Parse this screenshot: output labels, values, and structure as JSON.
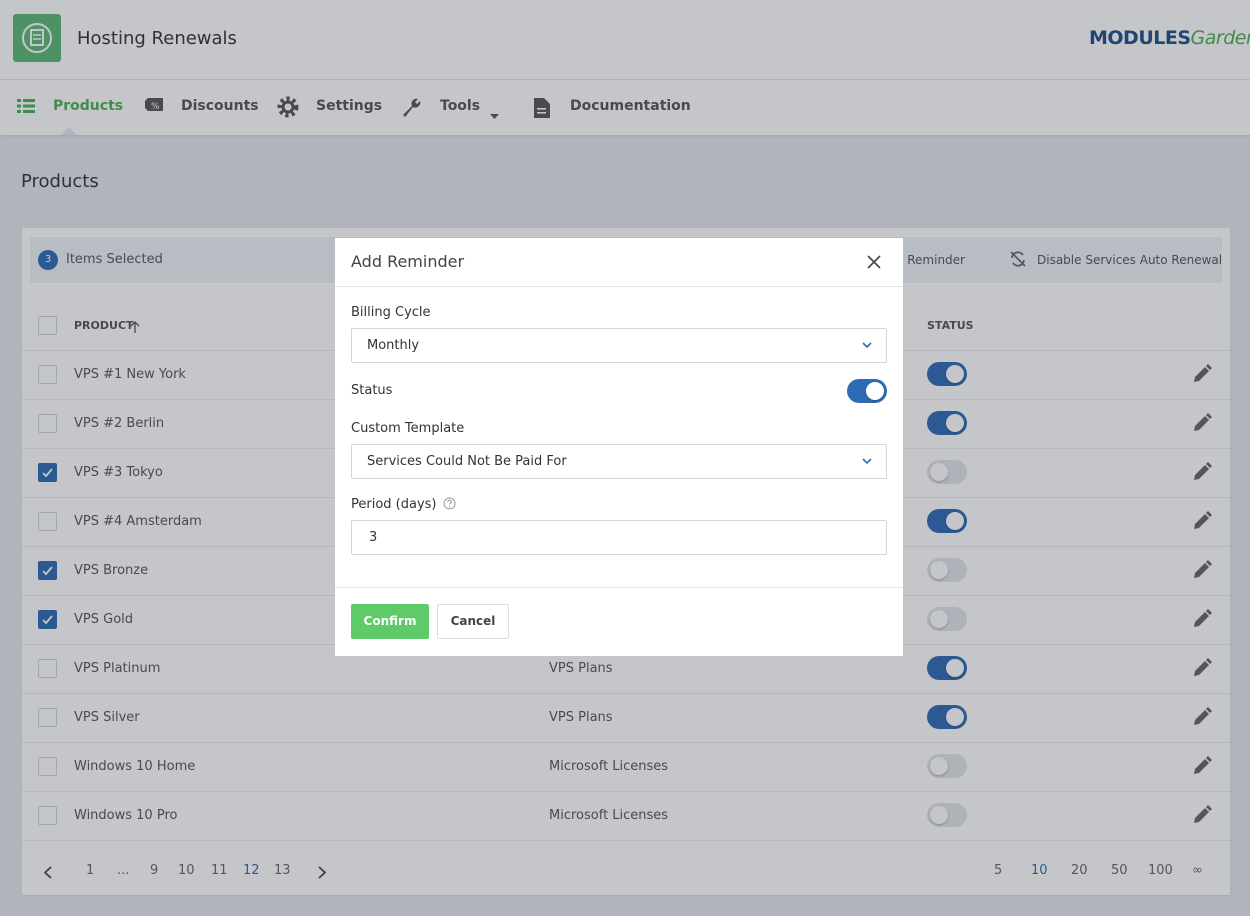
{
  "header": {
    "title": "Hosting Renewals",
    "logo": {
      "primary": "MODULES",
      "secondary": "Garden"
    }
  },
  "nav": [
    {
      "label": "Products",
      "active": true
    },
    {
      "label": "Discounts",
      "active": false
    },
    {
      "label": "Settings",
      "active": false
    },
    {
      "label": "Tools",
      "active": false,
      "dropdown": true
    },
    {
      "label": "Documentation",
      "active": false
    }
  ],
  "page_title": "Products",
  "bulk_bar": {
    "count": 3,
    "label": "Items Selected",
    "actions": [
      "Add Reminder",
      "Disable Services Auto Renewal"
    ]
  },
  "table": {
    "columns": [
      "PRODUCT",
      null,
      "STATUS"
    ],
    "sort_ascending": true,
    "rows": [
      {
        "name": "VPS #1 New York",
        "group": null,
        "status": true,
        "selected": false
      },
      {
        "name": "VPS #2 Berlin",
        "group": null,
        "status": true,
        "selected": false
      },
      {
        "name": "VPS #3 Tokyo",
        "group": null,
        "status": false,
        "selected": true
      },
      {
        "name": "VPS #4 Amsterdam",
        "group": null,
        "status": true,
        "selected": false
      },
      {
        "name": "VPS Bronze",
        "group": null,
        "status": false,
        "selected": true
      },
      {
        "name": "VPS Gold",
        "group": null,
        "status": false,
        "selected": true
      },
      {
        "name": "VPS Platinum",
        "group": "VPS Plans",
        "status": true,
        "selected": false
      },
      {
        "name": "VPS Silver",
        "group": "VPS Plans",
        "status": true,
        "selected": false
      },
      {
        "name": "Windows 10 Home",
        "group": "Microsoft Licenses",
        "status": false,
        "selected": false
      },
      {
        "name": "Windows 10 Pro",
        "group": "Microsoft Licenses",
        "status": false,
        "selected": false
      }
    ]
  },
  "pagination": {
    "pages": [
      {
        "label": "1",
        "active": false
      },
      {
        "label": "...",
        "active": false
      },
      {
        "label": "9",
        "active": false
      },
      {
        "label": "10",
        "active": false
      },
      {
        "label": "11",
        "active": false
      },
      {
        "label": "12",
        "active": true
      },
      {
        "label": "13",
        "active": false
      }
    ],
    "per_page": [
      {
        "label": "5",
        "active": false
      },
      {
        "label": "10",
        "active": true
      },
      {
        "label": "20",
        "active": false
      },
      {
        "label": "50",
        "active": false
      },
      {
        "label": "100",
        "active": false
      },
      {
        "label": "∞",
        "active": false
      }
    ]
  },
  "modal": {
    "title": "Add Reminder",
    "billing_cycle": {
      "label": "Billing Cycle",
      "value": "Monthly"
    },
    "status": {
      "label": "Status",
      "enabled": true
    },
    "custom_template": {
      "label": "Custom Template",
      "value": "Services Could Not Be Paid For"
    },
    "period": {
      "label": "Period (days)",
      "value": 3
    },
    "buttons": {
      "confirm": "Confirm",
      "cancel": "Cancel"
    }
  }
}
